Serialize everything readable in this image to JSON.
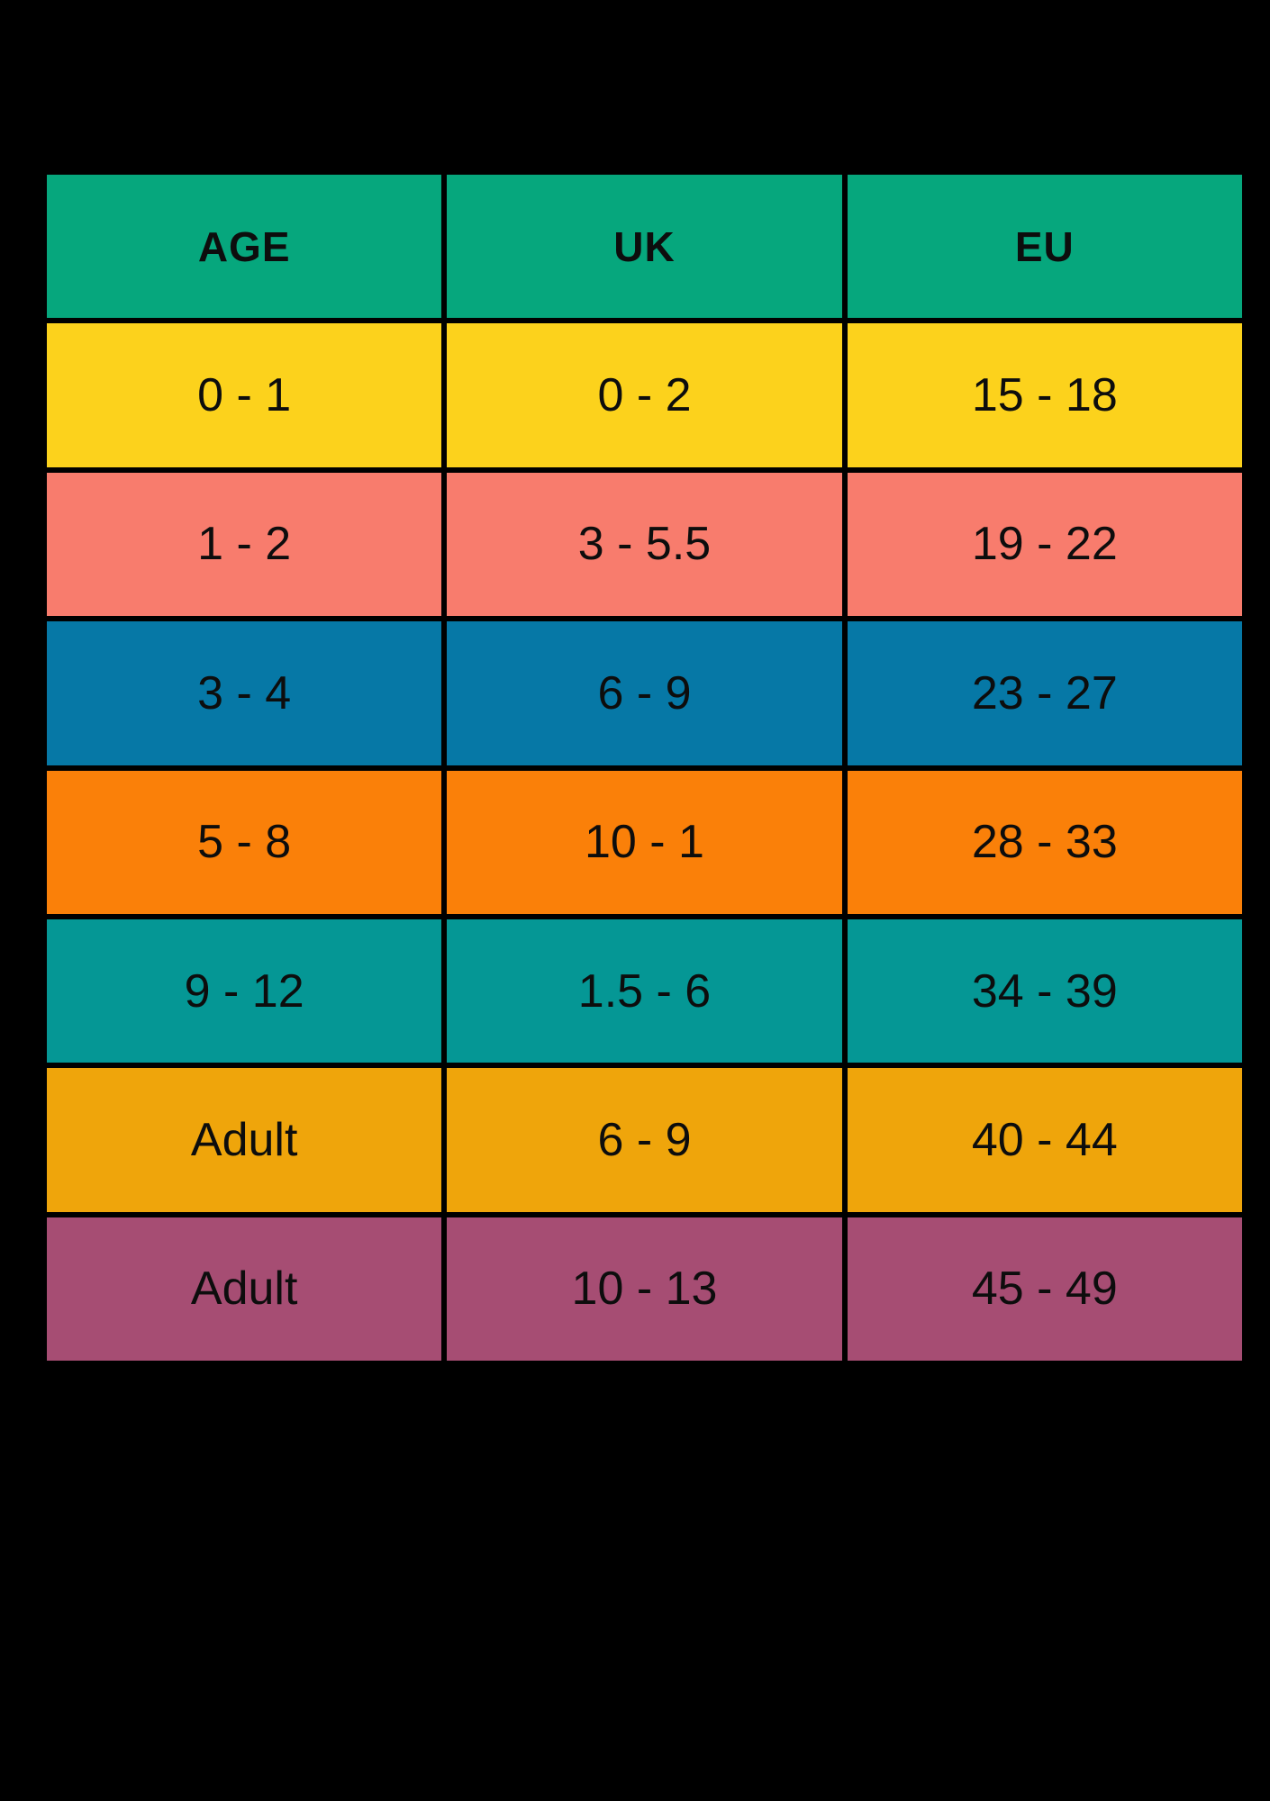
{
  "chart_data": {
    "type": "table",
    "title": "",
    "columns": [
      "AGE",
      "UK",
      "EU"
    ],
    "rows": [
      [
        "0 - 1",
        "0 - 2",
        "15 - 18"
      ],
      [
        "1 - 2",
        "3 - 5.5",
        "19 - 22"
      ],
      [
        "3 - 4",
        "6 - 9",
        "23 - 27"
      ],
      [
        "5 - 8",
        "10 - 1",
        "28 - 33"
      ],
      [
        "9 - 12",
        "1.5 - 6",
        "34 - 39"
      ],
      [
        "Adult",
        "6 - 9",
        "40 - 44"
      ],
      [
        "Adult",
        "10 - 13",
        "45 - 49"
      ]
    ],
    "header_color": "#06a77d",
    "row_colors": [
      "#fcd21c",
      "#f87c6d",
      "#0678a6",
      "#fa8009",
      "#059795",
      "#efa50b",
      "#a64d73"
    ],
    "text_color": "#0d0d0d",
    "background": "#000000",
    "legend": "none",
    "grid": "black cell separators"
  }
}
